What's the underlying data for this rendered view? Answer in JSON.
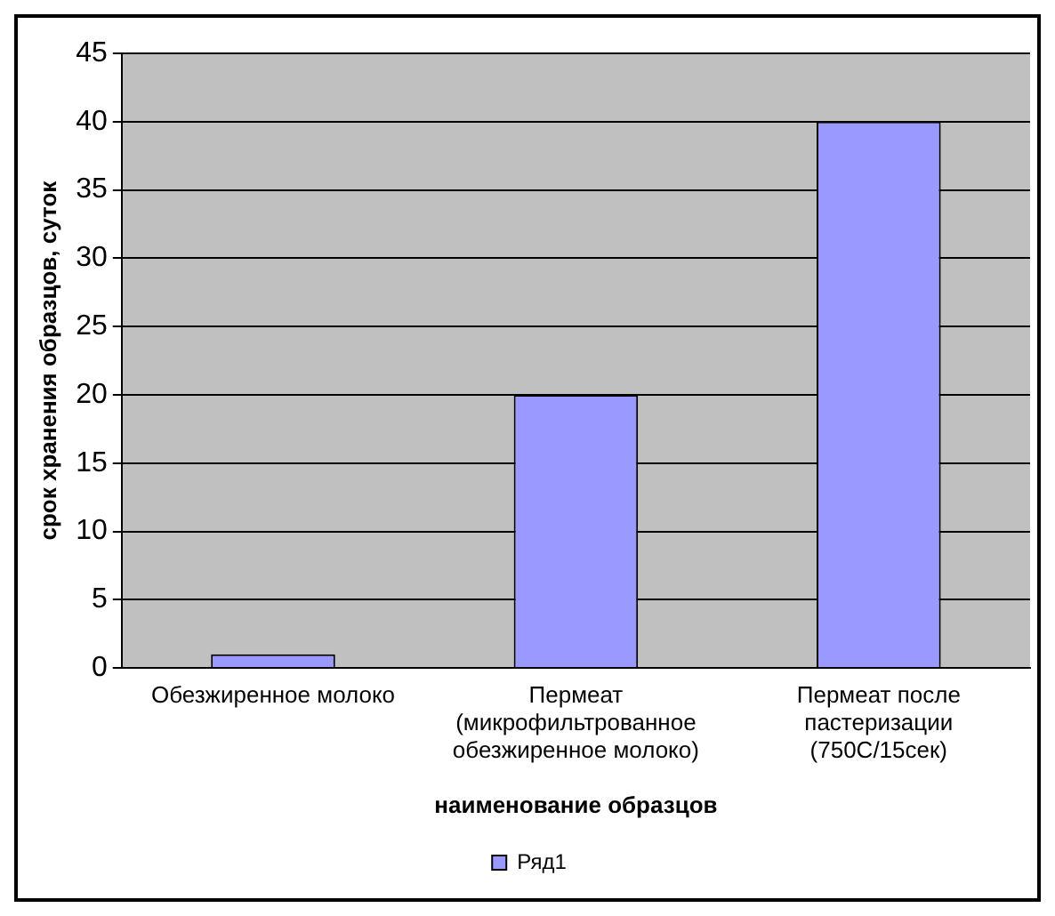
{
  "chart_data": {
    "type": "bar",
    "xlabel": "наименование образцов",
    "ylabel": "срок хранения образцов, суток",
    "categories": [
      "Обезжиренное молоко",
      "Пермеат (микрофильтрованное обезжиренное молоко)",
      "Пермеат после пастеризации (750С/15сек)"
    ],
    "series": [
      {
        "name": "Ряд1",
        "color": "#9999ff",
        "values": [
          1,
          20,
          40
        ]
      }
    ],
    "ylim": [
      0,
      45
    ],
    "yticks": [
      0,
      5,
      10,
      15,
      20,
      25,
      30,
      35,
      40,
      45
    ],
    "grid": "y",
    "legend": "bottom"
  }
}
